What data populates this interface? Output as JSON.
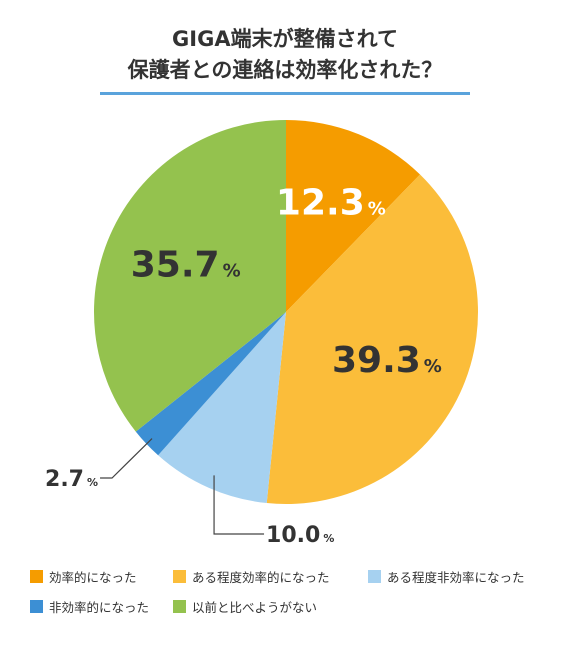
{
  "chart_data": {
    "type": "pie",
    "title_lines": [
      "GIGA端末が整備されて",
      "保護者との連絡は効率化された？"
    ],
    "slices": [
      {
        "name": "効率的になった",
        "value": 12.3,
        "label": "12.3",
        "color": "#f59c00"
      },
      {
        "name": "ある程度効率的になった",
        "value": 39.3,
        "label": "39.3",
        "color": "#fbbd3a"
      },
      {
        "name": "ある程度非効率になった",
        "value": 10.0,
        "label": "10.0",
        "color": "#a6d1f0"
      },
      {
        "name": "非効率的になった",
        "value": 2.7,
        "label": "2.7",
        "color": "#3c8fd4"
      },
      {
        "name": "以前と比べようがない",
        "value": 35.7,
        "label": "35.7",
        "color": "#94c24e"
      }
    ],
    "unit": "%",
    "legend_position": "bottom"
  }
}
